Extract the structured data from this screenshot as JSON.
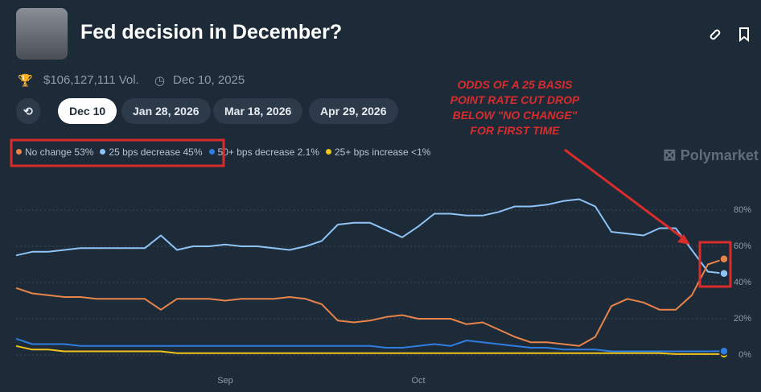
{
  "header": {
    "title": "Fed decision in December?",
    "volume": "$106,127,111 Vol.",
    "date": "Dec 10, 2025",
    "tabs": [
      "Dec 10",
      "Jan 28, 2026",
      "Mar 18, 2026",
      "Apr 29, 2026"
    ],
    "brand": "Polymarket"
  },
  "chart_data": {
    "type": "line",
    "annotation": [
      "ODDS OF A 25 BASIS",
      "POINT RATE CUT DROP",
      "BELOW \"NO CHANGE\"",
      "FOR FIRST TIME"
    ],
    "categories": [
      null,
      null,
      null,
      null,
      null,
      null,
      null,
      null,
      null,
      null,
      null,
      null,
      null,
      "Sep",
      null,
      null,
      null,
      null,
      null,
      null,
      null,
      null,
      null,
      null,
      null,
      "Oct",
      null,
      null,
      null,
      null,
      null,
      null,
      null,
      null,
      null,
      null,
      null,
      null,
      null,
      null,
      null,
      null,
      null,
      null,
      null
    ],
    "ylim": [
      0,
      90
    ],
    "yticks": [
      {
        "value": 0,
        "label": "0%"
      },
      {
        "value": 20,
        "label": "20%"
      },
      {
        "value": 40,
        "label": "40%"
      },
      {
        "value": 60,
        "label": "60%"
      },
      {
        "value": 80,
        "label": "80%"
      }
    ],
    "grid": true,
    "series": [
      {
        "name": "No change",
        "legend_value": "53%",
        "color": "#e8844a",
        "values": [
          37,
          34,
          33,
          32,
          32,
          31,
          31,
          31,
          31,
          25,
          31,
          31,
          31,
          30,
          31,
          31,
          31,
          32,
          31,
          28,
          19,
          18,
          19,
          21,
          22,
          20,
          20,
          20,
          17,
          18,
          14,
          10,
          7,
          7,
          6,
          5,
          10,
          27,
          31,
          29,
          25,
          25,
          33,
          50,
          53
        ]
      },
      {
        "name": "25 bps decrease",
        "legend_value": "45%",
        "color": "#8ec3f5",
        "values": [
          55,
          57,
          57,
          58,
          59,
          59,
          59,
          59,
          59,
          66,
          58,
          60,
          60,
          61,
          60,
          60,
          59,
          58,
          60,
          63,
          72,
          73,
          73,
          69,
          65,
          71,
          78,
          78,
          77,
          77,
          79,
          82,
          82,
          83,
          85,
          86,
          82,
          68,
          67,
          66,
          70,
          70,
          58,
          46,
          45
        ]
      },
      {
        "name": "50+ bps decrease",
        "legend_value": "2.1%",
        "color": "#2f7de1",
        "values": [
          9,
          6,
          6,
          6,
          5,
          5,
          5,
          5,
          5,
          5,
          5,
          5,
          5,
          5,
          5,
          5,
          5,
          5,
          5,
          5,
          5,
          5,
          5,
          4,
          4,
          5,
          6,
          5,
          8,
          7,
          6,
          5,
          4,
          4,
          3,
          3,
          3,
          2,
          2,
          2,
          2,
          2,
          2,
          2,
          2.1
        ]
      },
      {
        "name": "25+ bps increase",
        "legend_value": "<1%",
        "color": "#f0c419",
        "values": [
          5,
          3,
          3,
          2,
          2,
          2,
          2,
          2,
          2,
          2,
          1,
          1,
          1,
          1,
          1,
          1,
          1,
          1,
          1,
          1,
          1,
          1,
          1,
          1,
          1,
          1,
          1,
          1,
          1,
          1,
          1,
          1,
          1,
          1,
          1,
          1,
          1,
          1,
          1,
          1,
          1,
          0.5,
          0.5,
          0.5,
          0.5
        ]
      }
    ]
  }
}
